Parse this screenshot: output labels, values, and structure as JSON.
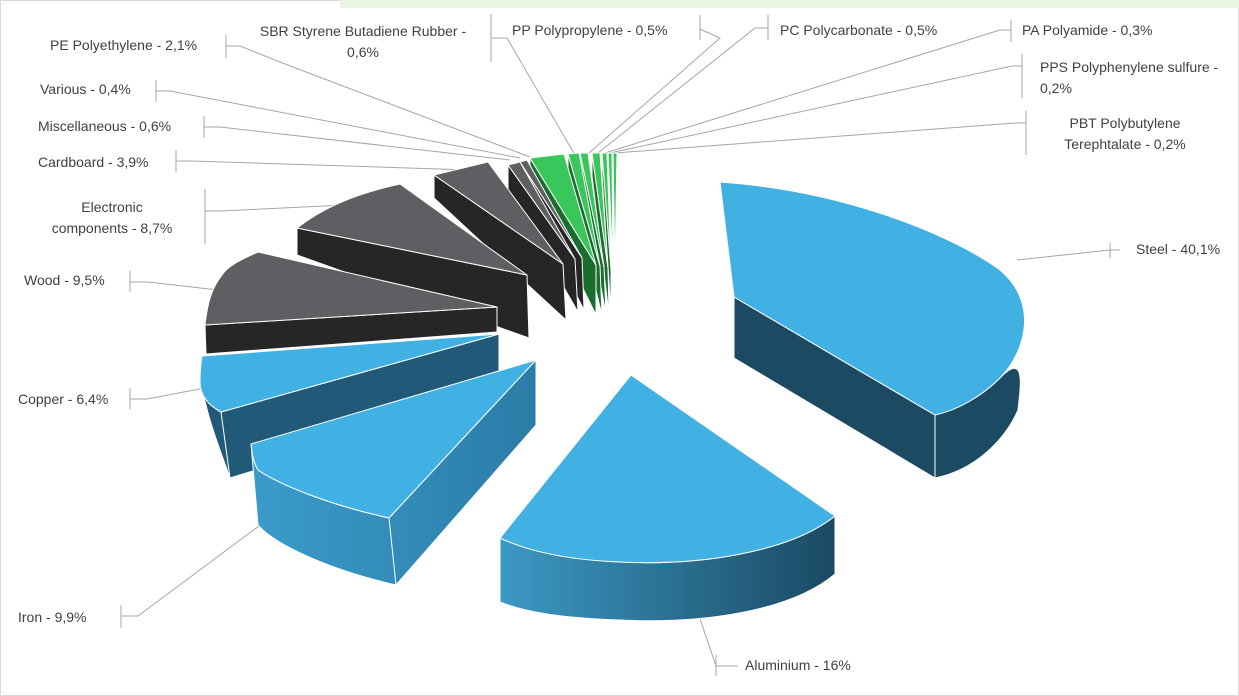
{
  "chart_data": {
    "type": "pie",
    "title": "",
    "legend": "none",
    "data_labels": "category-percentage",
    "slices": [
      {
        "name": "Steel",
        "value": 40.1,
        "label": "Steel - 40,1%",
        "color": "#41b0e3",
        "side": "#1b4a62"
      },
      {
        "name": "Aluminium",
        "value": 16,
        "label": "Aluminium - 16%",
        "color": "#41b0e3",
        "side": "#2a6b8f"
      },
      {
        "name": "Iron",
        "value": 9.9,
        "label": "Iron - 9,9%",
        "color": "#41b0e3",
        "side": "#3087b2"
      },
      {
        "name": "Copper",
        "value": 6.4,
        "label": "Copper - 6,4%",
        "color": "#41b0e3",
        "side": "#215a78"
      },
      {
        "name": "Wood",
        "value": 9.5,
        "label": "Wood - 9,5%",
        "color": "#5f5f63",
        "side": "#262626"
      },
      {
        "name": "Electronic components",
        "value": 8.7,
        "label": [
          "Electronic",
          "components - 8,7%"
        ],
        "color": "#5f5f63",
        "side": "#262626"
      },
      {
        "name": "Cardboard",
        "value": 3.9,
        "label": "Cardboard - 3,9%",
        "color": "#5f5f63",
        "side": "#262626"
      },
      {
        "name": "Miscellaneous",
        "value": 0.6,
        "label": "Miscellaneous - 0,6%",
        "color": "#5f5f63",
        "side": "#262626"
      },
      {
        "name": "Various",
        "value": 0.4,
        "label": "Various - 0,4%",
        "color": "#5f5f63",
        "side": "#262626"
      },
      {
        "name": "PE Polyethylene",
        "value": 2.1,
        "label": "PE Polyethylene - 2,1%",
        "color": "#39c65a",
        "side": "#1b6d2e"
      },
      {
        "name": "SBR Styrene Butadiene Rubber",
        "value": 0.6,
        "label": [
          "SBR Styrene Butadiene Rubber -",
          "0,6%"
        ],
        "color": "#39c65a",
        "side": "#1b6d2e"
      },
      {
        "name": "PP Polypropylene",
        "value": 0.5,
        "label": "PP Polypropylene - 0,5%",
        "color": "#39c65a",
        "side": "#1b6d2e"
      },
      {
        "name": "PC Polycarbonate",
        "value": 0.5,
        "label": "PC Polycarbonate - 0,5%",
        "color": "#39c65a",
        "side": "#1b6d2e"
      },
      {
        "name": "PA Polyamide",
        "value": 0.3,
        "label": "PA Polyamide - 0,3%",
        "color": "#39c65a",
        "side": "#1b6d2e"
      },
      {
        "name": "PPS Polyphenylene sulfure",
        "value": 0.2,
        "label": [
          "PPS Polyphenylene sulfure -",
          "0,2%"
        ],
        "color": "#39c65a",
        "side": "#1b6d2e"
      },
      {
        "name": "PBT Polybutylene Terephtalate",
        "value": 0.2,
        "label": [
          "PBT Polybutylene",
          "Terephtalate - 0,2%"
        ],
        "color": "#39c65a",
        "side": "#1b6d2e"
      }
    ]
  }
}
